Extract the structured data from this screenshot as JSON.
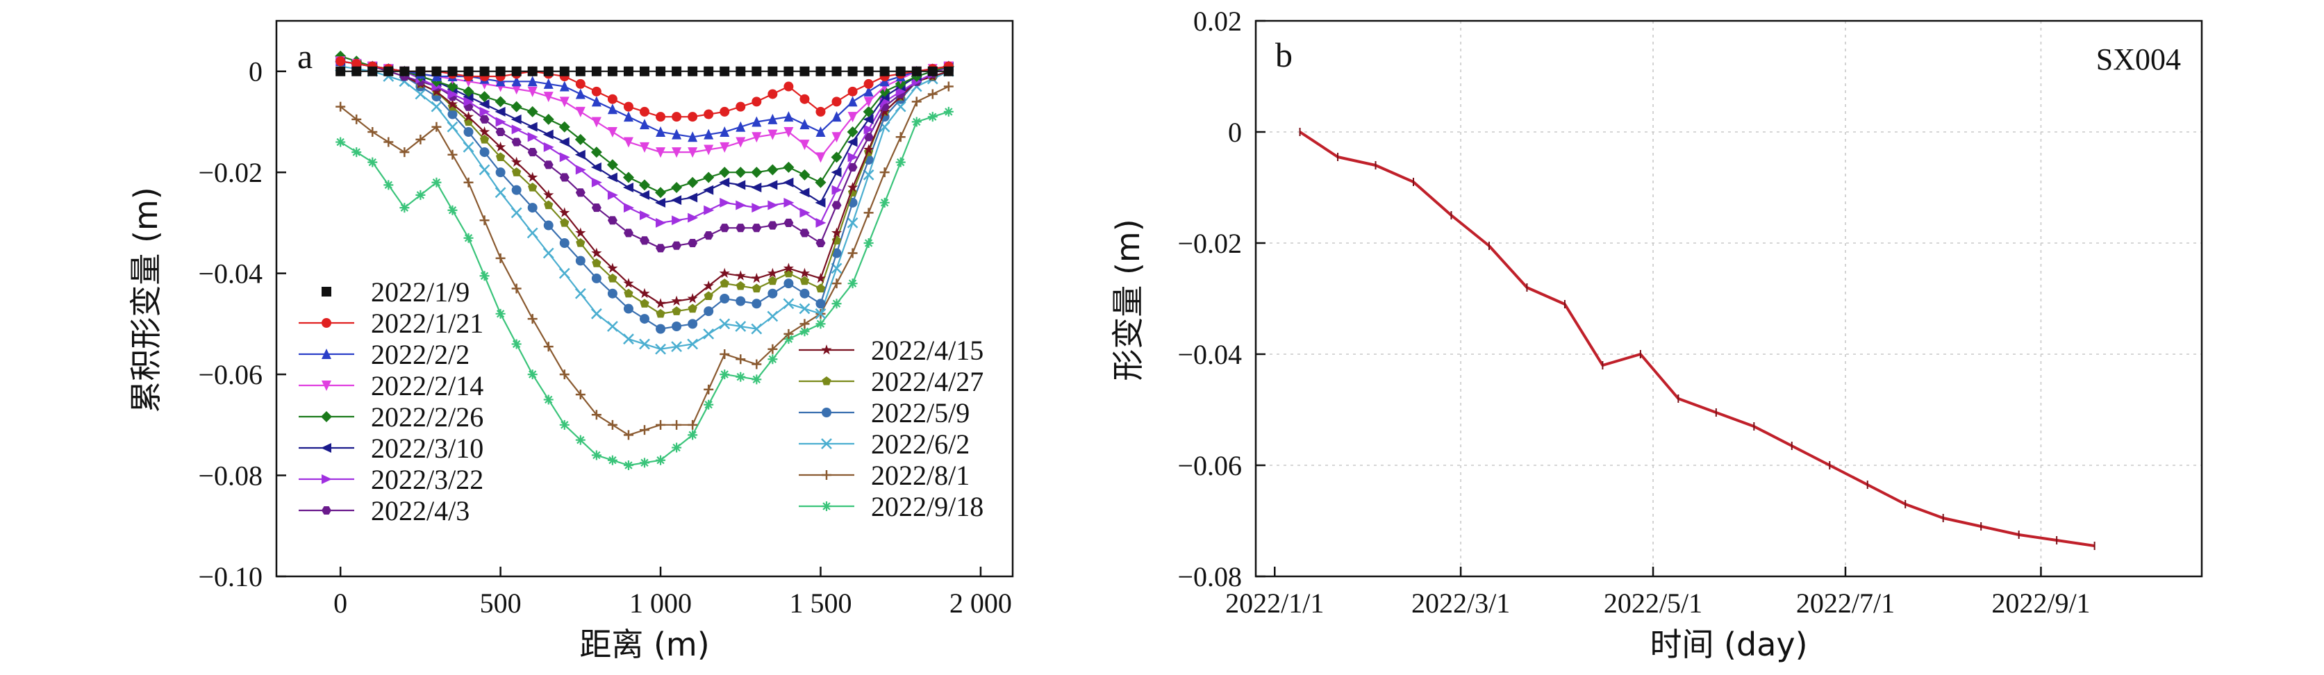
{
  "chart_data": [
    {
      "panel_label": "a",
      "type": "line",
      "xlabel": "距离 (m)",
      "ylabel": "累积形变量 (m)",
      "xlim": [
        -200,
        2100
      ],
      "ylim": [
        -0.1,
        0.01
      ],
      "xticks": [
        0,
        500,
        1000,
        1500,
        2000
      ],
      "xtick_labels": [
        "0",
        "500",
        "1 000",
        "1 500",
        "2 000"
      ],
      "yticks": [
        0,
        -0.02,
        -0.04,
        -0.06,
        -0.08,
        -0.1
      ],
      "ytick_labels": [
        "0",
        "−0.02",
        "−0.04",
        "−0.06",
        "−0.08",
        "−0.10"
      ],
      "profile_x": [
        0,
        100,
        200,
        300,
        400,
        500,
        600,
        700,
        800,
        900,
        1000,
        1100,
        1200,
        1300,
        1400,
        1500,
        1600,
        1700,
        1800,
        1900
      ],
      "series": [
        {
          "name": "2022/1/9",
          "color": "#111111",
          "marker": "square",
          "values": [
            0,
            0,
            0,
            0,
            0,
            0,
            0,
            0,
            0,
            0,
            0,
            0,
            0,
            0,
            0,
            0,
            0,
            0,
            0,
            0
          ]
        },
        {
          "name": "2022/1/21",
          "color": "#e02020",
          "marker": "circle",
          "values": [
            0.002,
            0.001,
            0,
            0,
            -0.001,
            -0.001,
            0,
            -0.001,
            -0.004,
            -0.007,
            -0.009,
            -0.009,
            -0.008,
            -0.006,
            -0.003,
            -0.008,
            -0.004,
            -0.001,
            0,
            0.001
          ]
        },
        {
          "name": "2022/2/2",
          "color": "#2a3fc8",
          "marker": "triangle",
          "values": [
            0.002,
            0.001,
            0,
            -0.001,
            -0.001,
            -0.002,
            -0.002,
            -0.003,
            -0.006,
            -0.009,
            -0.012,
            -0.013,
            -0.012,
            -0.01,
            -0.009,
            -0.012,
            -0.006,
            -0.002,
            0,
            0.001
          ]
        },
        {
          "name": "2022/2/14",
          "color": "#e040e0",
          "marker": "triangle-down",
          "values": [
            0.002,
            0.001,
            0,
            -0.001,
            -0.002,
            -0.003,
            -0.004,
            -0.006,
            -0.01,
            -0.014,
            -0.016,
            -0.016,
            -0.015,
            -0.013,
            -0.012,
            -0.017,
            -0.009,
            -0.003,
            0,
            0.001
          ]
        },
        {
          "name": "2022/2/26",
          "color": "#1a7a1a",
          "marker": "diamond",
          "values": [
            0.003,
            0.001,
            0,
            -0.002,
            -0.004,
            -0.006,
            -0.008,
            -0.011,
            -0.016,
            -0.021,
            -0.024,
            -0.022,
            -0.02,
            -0.02,
            -0.019,
            -0.022,
            -0.012,
            -0.004,
            -0.001,
            0.001
          ]
        },
        {
          "name": "2022/3/10",
          "color": "#1a1a8c",
          "marker": "triangle-left",
          "values": [
            0.002,
            0.001,
            0,
            -0.002,
            -0.005,
            -0.008,
            -0.011,
            -0.014,
            -0.019,
            -0.023,
            -0.026,
            -0.025,
            -0.022,
            -0.023,
            -0.022,
            -0.026,
            -0.014,
            -0.005,
            -0.001,
            0.001
          ]
        },
        {
          "name": "2022/3/22",
          "color": "#a030e0",
          "marker": "triangle-right",
          "values": [
            0.002,
            0.001,
            0,
            -0.003,
            -0.006,
            -0.01,
            -0.013,
            -0.017,
            -0.022,
            -0.027,
            -0.03,
            -0.029,
            -0.026,
            -0.027,
            -0.026,
            -0.03,
            -0.017,
            -0.006,
            -0.002,
            0.001
          ]
        },
        {
          "name": "2022/4/3",
          "color": "#6a1a8c",
          "marker": "hexagon",
          "values": [
            0.002,
            0.001,
            -0.001,
            -0.003,
            -0.007,
            -0.012,
            -0.016,
            -0.021,
            -0.027,
            -0.032,
            -0.035,
            -0.034,
            -0.031,
            -0.031,
            -0.03,
            -0.034,
            -0.019,
            -0.007,
            -0.002,
            0.001
          ]
        },
        {
          "name": "2022/4/15",
          "color": "#7a1020",
          "marker": "star",
          "values": [
            0.002,
            0.001,
            -0.001,
            -0.004,
            -0.009,
            -0.015,
            -0.021,
            -0.028,
            -0.036,
            -0.042,
            -0.046,
            -0.045,
            -0.04,
            -0.041,
            -0.039,
            -0.041,
            -0.023,
            -0.008,
            -0.002,
            0
          ]
        },
        {
          "name": "2022/4/27",
          "color": "#7a8a1a",
          "marker": "pentagon",
          "values": [
            0.002,
            0.001,
            -0.001,
            -0.004,
            -0.01,
            -0.017,
            -0.023,
            -0.03,
            -0.038,
            -0.044,
            -0.048,
            -0.047,
            -0.042,
            -0.043,
            -0.04,
            -0.043,
            -0.024,
            -0.008,
            -0.002,
            0
          ]
        },
        {
          "name": "2022/5/9",
          "color": "#3a70b0",
          "marker": "circle",
          "values": [
            0.002,
            0.001,
            -0.001,
            -0.005,
            -0.012,
            -0.02,
            -0.027,
            -0.034,
            -0.041,
            -0.047,
            -0.051,
            -0.05,
            -0.045,
            -0.046,
            -0.042,
            -0.046,
            -0.026,
            -0.009,
            -0.002,
            0
          ]
        },
        {
          "name": "2022/6/2",
          "color": "#4aaed0",
          "marker": "cross",
          "values": [
            0.001,
            0,
            -0.002,
            -0.007,
            -0.015,
            -0.024,
            -0.032,
            -0.04,
            -0.048,
            -0.053,
            -0.055,
            -0.054,
            -0.05,
            -0.051,
            -0.046,
            -0.048,
            -0.03,
            -0.011,
            -0.003,
            0
          ]
        },
        {
          "name": "2022/8/1",
          "color": "#8a5a30",
          "marker": "plus",
          "values": [
            -0.007,
            -0.012,
            -0.016,
            -0.011,
            -0.022,
            -0.037,
            -0.049,
            -0.06,
            -0.068,
            -0.072,
            -0.07,
            -0.07,
            -0.056,
            -0.058,
            -0.052,
            -0.048,
            -0.036,
            -0.02,
            -0.006,
            -0.003
          ]
        },
        {
          "name": "2022/9/18",
          "color": "#3ac47a",
          "marker": "asterisk",
          "values": [
            -0.014,
            -0.018,
            -0.027,
            -0.022,
            -0.033,
            -0.048,
            -0.06,
            -0.07,
            -0.076,
            -0.078,
            -0.077,
            -0.072,
            -0.06,
            -0.061,
            -0.053,
            -0.05,
            -0.042,
            -0.026,
            -0.01,
            -0.008
          ]
        }
      ]
    },
    {
      "panel_label": "b",
      "type": "line",
      "station": "SX004",
      "xlabel": "时间 (day)",
      "ylabel": "形变量 (m)",
      "ylim": [
        -0.08,
        0.02
      ],
      "yticks": [
        0.02,
        0,
        -0.02,
        -0.04,
        -0.06,
        -0.08
      ],
      "ytick_labels": [
        "0.02",
        "0",
        "−0.02",
        "−0.04",
        "−0.06",
        "−0.08"
      ],
      "xtick_labels": [
        "2022/1/1",
        "2022/3/1",
        "2022/5/1",
        "2022/7/1",
        "2022/9/1"
      ],
      "xtick_days": [
        0,
        59,
        120,
        181,
        243
      ],
      "xlim_days": [
        -6,
        294
      ],
      "color": "#c0202a",
      "x_days": [
        8,
        20,
        32,
        44,
        56,
        68,
        80,
        92,
        104,
        116,
        128,
        140,
        152,
        164,
        176,
        188,
        200,
        212,
        224,
        236,
        248,
        260
      ],
      "values": [
        0,
        -0.0045,
        -0.006,
        -0.009,
        -0.015,
        -0.0205,
        -0.028,
        -0.031,
        -0.042,
        -0.04,
        -0.048,
        -0.0505,
        -0.053,
        -0.0565,
        -0.06,
        -0.0635,
        -0.067,
        -0.0695,
        -0.071,
        -0.0725,
        -0.0735,
        -0.0745
      ]
    }
  ]
}
